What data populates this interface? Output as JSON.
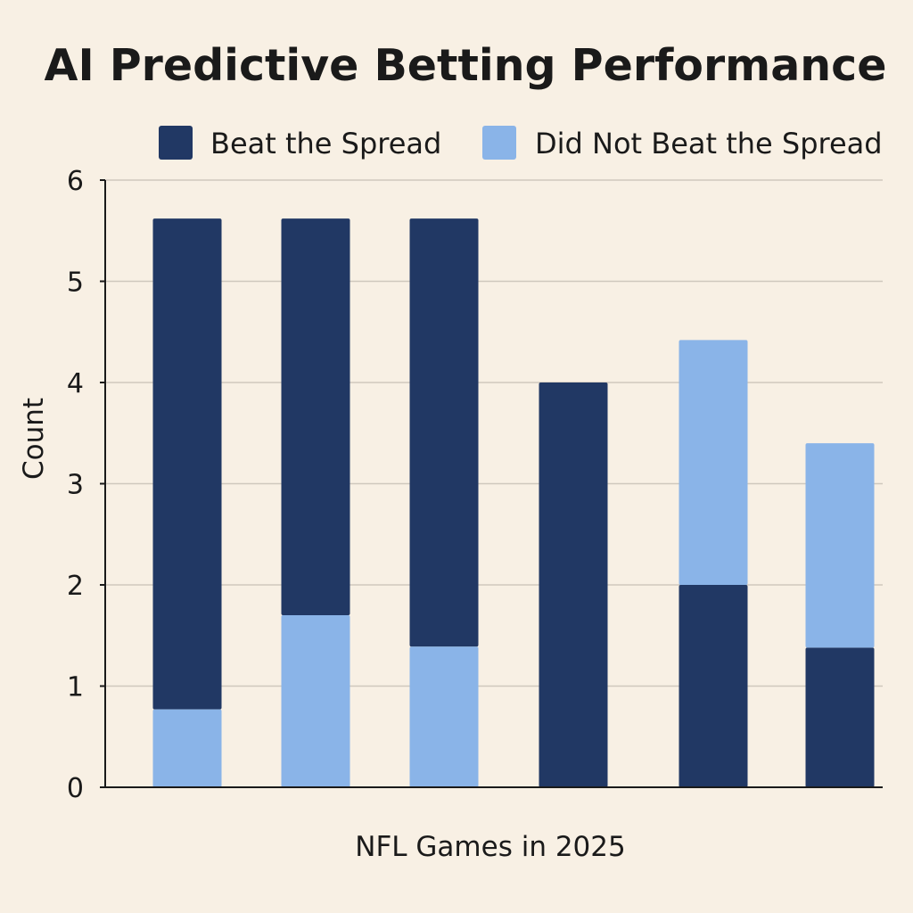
{
  "chart_data": {
    "type": "bar",
    "stacked": true,
    "title": "AI Predictive Betting Performance",
    "xlabel": "NFL Games in 2025",
    "ylabel": "Count",
    "ylim": [
      0,
      6
    ],
    "yticks": [
      0,
      1,
      2,
      3,
      4,
      5,
      6
    ],
    "grid": true,
    "legend_position": "top-right",
    "categories": [
      "",
      "",
      "",
      "",
      "",
      ""
    ],
    "series": [
      {
        "name": "Beat the Spread",
        "color": "#213864",
        "segments": [
          [
            0.77,
            5.62
          ],
          [
            1.7,
            5.62
          ],
          [
            1.39,
            5.62
          ],
          [
            0,
            4.0
          ],
          [
            0,
            2.0
          ],
          [
            0,
            1.38
          ]
        ]
      },
      {
        "name": "Did Not Beat the Spread",
        "color": "#8ab4e8",
        "segments": [
          [
            0,
            0.77
          ],
          [
            0,
            1.7
          ],
          [
            0,
            1.39
          ],
          [
            0,
            0
          ],
          [
            2.0,
            4.42
          ],
          [
            1.38,
            3.4
          ]
        ]
      }
    ]
  }
}
